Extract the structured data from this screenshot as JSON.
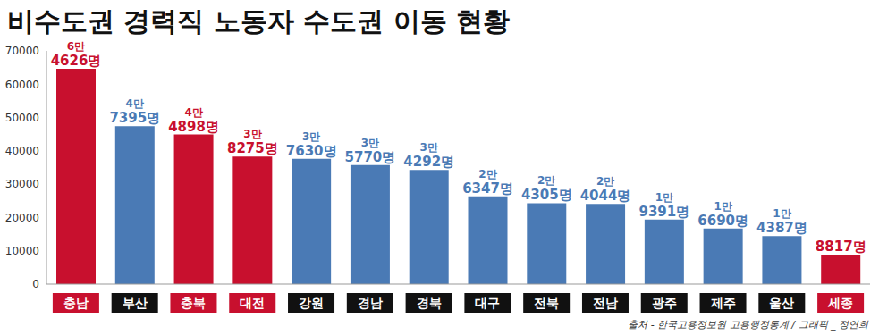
{
  "chart_data": {
    "type": "bar",
    "title": "비수도권 경력직 노동자 수도권 이동 현황",
    "source": "출처 - 한국고용정보원 고용행정통계 / 그래픽 _ 정연희",
    "categories": [
      "충남",
      "부산",
      "충북",
      "대전",
      "강원",
      "경남",
      "경북",
      "대구",
      "전북",
      "전남",
      "광주",
      "제주",
      "울산",
      "세종"
    ],
    "values": [
      64626,
      47395,
      44898,
      38275,
      37630,
      35770,
      34292,
      26347,
      24305,
      24044,
      19391,
      16690,
      14387,
      8817
    ],
    "value_labels": [
      "6만 4626명",
      "4만 7395명",
      "4만 4898명",
      "3만 8275명",
      "3만 7630명",
      "3만 5770명",
      "3만 4292명",
      "2만 6347명",
      "2만 4305명",
      "2만 4044명",
      "1만 9391명",
      "1만 6690명",
      "1만 4387명",
      "8817명"
    ],
    "colors": [
      "#c8102e",
      "#4a7ab5",
      "#c8102e",
      "#c8102e",
      "#4a7ab5",
      "#4a7ab5",
      "#4a7ab5",
      "#4a7ab5",
      "#4a7ab5",
      "#4a7ab5",
      "#4a7ab5",
      "#4a7ab5",
      "#4a7ab5",
      "#c8102e"
    ],
    "ylim": [
      0,
      70000
    ],
    "yticks": [
      0,
      10000,
      20000,
      30000,
      40000,
      50000,
      60000,
      70000
    ],
    "grid": false,
    "data_labels": true
  }
}
